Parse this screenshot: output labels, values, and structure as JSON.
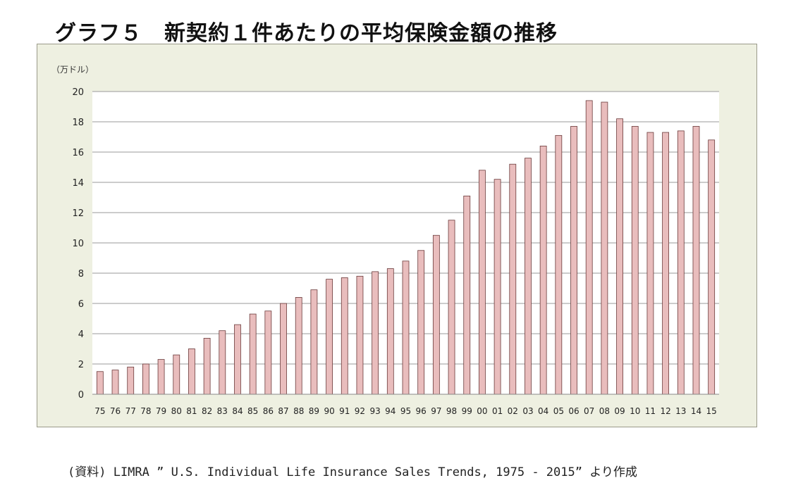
{
  "title": "グラフ５　新契約１件あたりの平均保険金額の推移",
  "source": "(資料) LIMRA ” U.S. Individual Life Insurance Sales Trends, 1975 - 2015” より作成",
  "chart_data": {
    "type": "bar",
    "unit_label": "（万ドル）",
    "categories": [
      "75",
      "76",
      "77",
      "78",
      "79",
      "80",
      "81",
      "82",
      "83",
      "84",
      "85",
      "86",
      "87",
      "88",
      "89",
      "90",
      "91",
      "92",
      "93",
      "94",
      "95",
      "96",
      "97",
      "98",
      "99",
      "00",
      "01",
      "02",
      "03",
      "04",
      "05",
      "06",
      "07",
      "08",
      "09",
      "10",
      "11",
      "12",
      "13",
      "14",
      "15"
    ],
    "values": [
      1.5,
      1.6,
      1.8,
      2.0,
      2.3,
      2.6,
      3.0,
      3.7,
      4.2,
      4.6,
      5.3,
      5.5,
      6.0,
      6.4,
      6.9,
      7.6,
      7.7,
      7.8,
      8.1,
      8.3,
      8.8,
      9.5,
      10.5,
      11.5,
      13.1,
      14.8,
      14.2,
      15.2,
      15.6,
      16.4,
      17.1,
      17.7,
      19.4,
      19.3,
      18.2,
      17.7,
      17.3,
      17.3,
      17.4,
      17.7,
      16.8
    ],
    "yticks": [
      "0",
      "2",
      "4",
      "6",
      "8",
      "10",
      "12",
      "14",
      "16",
      "18",
      "20"
    ],
    "ylim": [
      0,
      20
    ],
    "grid": true,
    "legend": "none",
    "bar_color": "#e9bdbd",
    "bar_stroke": "#6b3a3a",
    "plot_bg": "#ffffff",
    "frame_bg": "#eef0e1"
  }
}
